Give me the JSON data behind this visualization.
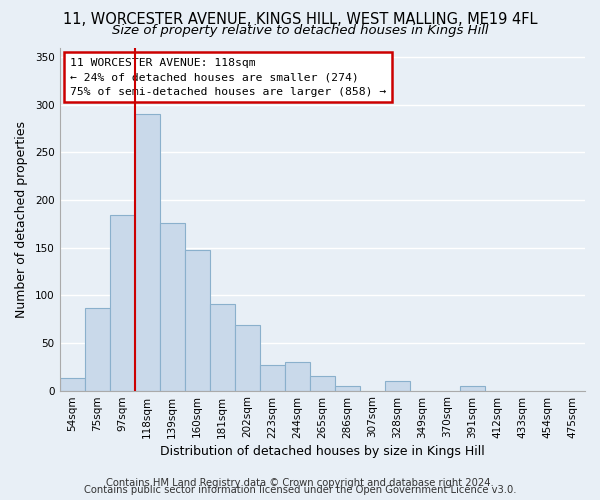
{
  "title1": "11, WORCESTER AVENUE, KINGS HILL, WEST MALLING, ME19 4FL",
  "title2": "Size of property relative to detached houses in Kings Hill",
  "xlabel": "Distribution of detached houses by size in Kings Hill",
  "ylabel": "Number of detached properties",
  "bar_labels": [
    "54sqm",
    "75sqm",
    "97sqm",
    "118sqm",
    "139sqm",
    "160sqm",
    "181sqm",
    "202sqm",
    "223sqm",
    "244sqm",
    "265sqm",
    "286sqm",
    "307sqm",
    "328sqm",
    "349sqm",
    "370sqm",
    "391sqm",
    "412sqm",
    "433sqm",
    "454sqm",
    "475sqm"
  ],
  "bar_values": [
    13,
    87,
    184,
    290,
    176,
    148,
    91,
    69,
    27,
    30,
    15,
    5,
    0,
    10,
    0,
    0,
    5,
    0,
    0,
    0,
    0
  ],
  "bar_color": "#c9d9ea",
  "bar_edge_color": "#8ab0cc",
  "vline_index": 3,
  "vline_color": "#cc0000",
  "annotation_line1": "11 WORCESTER AVENUE: 118sqm",
  "annotation_line2": "← 24% of detached houses are smaller (274)",
  "annotation_line3": "75% of semi-detached houses are larger (858) →",
  "annotation_box_edgecolor": "#cc0000",
  "annotation_box_facecolor": "#ffffff",
  "ylim": [
    0,
    360
  ],
  "yticks": [
    0,
    50,
    100,
    150,
    200,
    250,
    300,
    350
  ],
  "footer1": "Contains HM Land Registry data © Crown copyright and database right 2024.",
  "footer2": "Contains public sector information licensed under the Open Government Licence v3.0.",
  "background_color": "#e8eff6",
  "grid_color": "#ffffff",
  "title_fontsize": 10.5,
  "subtitle_fontsize": 9.5,
  "axis_label_fontsize": 9,
  "tick_fontsize": 7.5,
  "footer_fontsize": 7.2
}
